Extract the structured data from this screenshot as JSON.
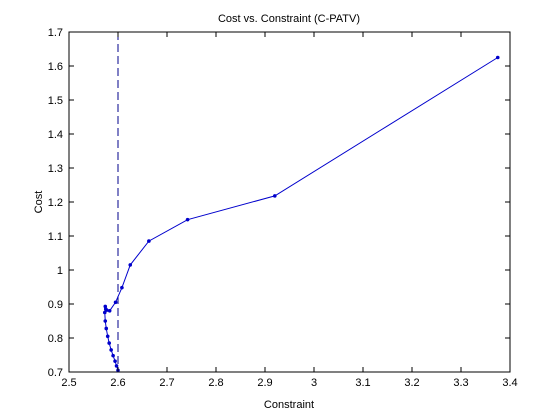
{
  "chart_data": {
    "type": "line",
    "title": "Cost vs. Constraint (C-PATV)",
    "xlabel": "Constraint",
    "ylabel": "Cost",
    "xlim": [
      2.5,
      3.4
    ],
    "ylim": [
      0.7,
      1.7
    ],
    "xticks": [
      "2.5",
      "2.6",
      "2.7",
      "2.8",
      "2.9",
      "3",
      "3.1",
      "3.2",
      "3.3",
      "3.4"
    ],
    "yticks": [
      "0.7",
      "0.8",
      "0.9",
      "1",
      "1.1",
      "1.2",
      "1.3",
      "1.4",
      "1.5",
      "1.6",
      "1.7"
    ],
    "grid": false,
    "vline": {
      "x": 2.6,
      "style": "dashed",
      "color": "#00008b"
    },
    "series": [
      {
        "color": "#0000cc",
        "marker": "dot",
        "x": [
          3.375,
          2.92,
          2.742,
          2.663,
          2.625,
          2.608,
          2.595,
          2.583,
          2.577,
          2.575,
          2.574,
          2.573,
          2.574,
          2.576,
          2.579,
          2.582,
          2.586,
          2.59,
          2.594,
          2.597,
          2.6
        ],
        "y": [
          1.625,
          1.218,
          1.148,
          1.085,
          1.015,
          0.948,
          0.905,
          0.88,
          0.882,
          0.885,
          0.893,
          0.875,
          0.85,
          0.828,
          0.805,
          0.785,
          0.765,
          0.748,
          0.732,
          0.718,
          0.705
        ]
      }
    ]
  }
}
